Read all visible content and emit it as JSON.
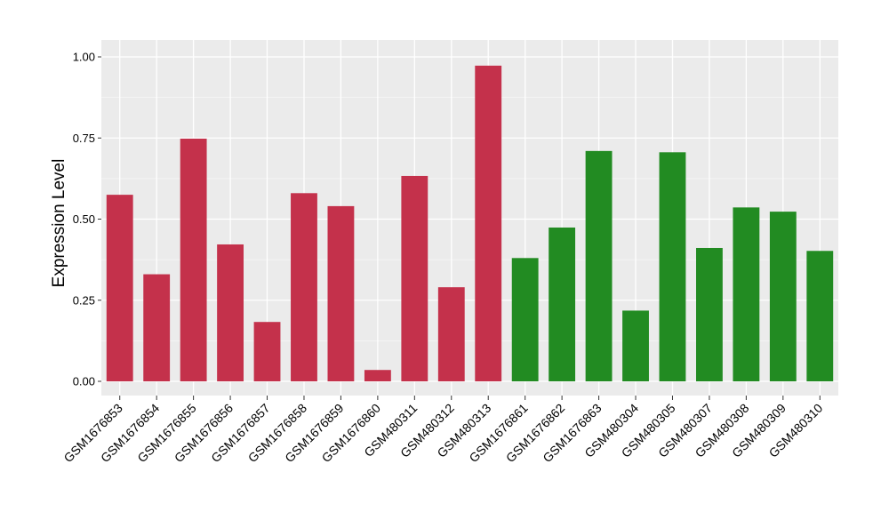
{
  "chart_data": {
    "type": "bar",
    "title": "",
    "xlabel": "",
    "ylabel": "Expression Level",
    "ylim": [
      0,
      1.0
    ],
    "yticks": [
      "0.00",
      "0.25",
      "0.50",
      "0.75",
      "1.00"
    ],
    "ytick_values": [
      0,
      0.25,
      0.5,
      0.75,
      1.0
    ],
    "grid": true,
    "legend": "none",
    "colors": {
      "group1": "#C4314B",
      "group2": "#228B22",
      "panel": "#EBEBEB",
      "gridline": "#FFFFFF"
    },
    "categories": [
      "GSM1676853",
      "GSM1676854",
      "GSM1676855",
      "GSM1676856",
      "GSM1676857",
      "GSM1676858",
      "GSM1676859",
      "GSM1676860",
      "GSM480311",
      "GSM480312",
      "GSM480313",
      "GSM1676861",
      "GSM1676862",
      "GSM1676863",
      "GSM480304",
      "GSM480305",
      "GSM480307",
      "GSM480308",
      "GSM480309",
      "GSM480310"
    ],
    "values": [
      0.575,
      0.33,
      0.748,
      0.422,
      0.183,
      0.58,
      0.54,
      0.035,
      0.633,
      0.29,
      0.973,
      0.38,
      0.474,
      0.71,
      0.218,
      0.706,
      0.411,
      0.536,
      0.523,
      0.402
    ],
    "groups": [
      "group1",
      "group1",
      "group1",
      "group1",
      "group1",
      "group1",
      "group1",
      "group1",
      "group1",
      "group1",
      "group1",
      "group2",
      "group2",
      "group2",
      "group2",
      "group2",
      "group2",
      "group2",
      "group2",
      "group2"
    ]
  }
}
